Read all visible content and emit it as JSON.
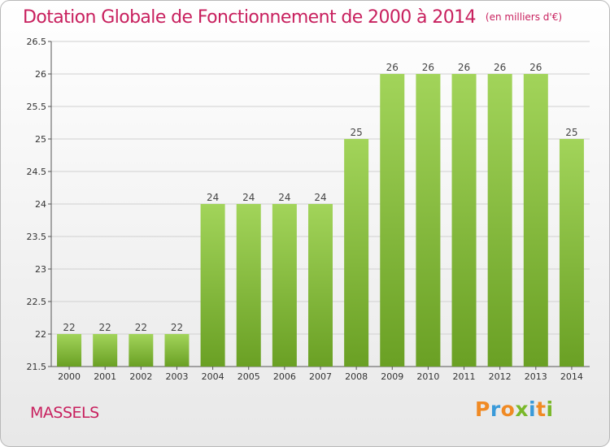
{
  "header": {
    "title": "Dotation Globale de Fonctionnement de 2000 à 2014",
    "unit": "(en milliers d'€)"
  },
  "footer": {
    "town": "MASSELS",
    "brand_letters": [
      "P",
      "r",
      "o",
      "x",
      "i",
      "t",
      "i"
    ],
    "brand_colors": [
      "#f08a24",
      "#3a9ad9",
      "#f08a24",
      "#7ab82a",
      "#3a9ad9",
      "#f08a24",
      "#7ab82a"
    ]
  },
  "colors": {
    "bar": "#8cc63f",
    "bar_light": "#a2d45a",
    "bar_dark": "#6aa024",
    "axis": "#555555",
    "grid": "#d0d0d0",
    "title": "#c8205e"
  },
  "chart_data": {
    "type": "bar",
    "title": "Dotation Globale de Fonctionnement de 2000 à 2014",
    "categories": [
      "2000",
      "2001",
      "2002",
      "2003",
      "2004",
      "2005",
      "2006",
      "2007",
      "2008",
      "2009",
      "2010",
      "2011",
      "2012",
      "2013",
      "2014"
    ],
    "values": [
      22,
      22,
      22,
      22,
      24,
      24,
      24,
      24,
      25,
      26,
      26,
      26,
      26,
      26,
      25
    ],
    "ylim": [
      21.5,
      26.5
    ],
    "yticks": [
      21.5,
      22,
      22.5,
      23,
      23.5,
      24,
      24.5,
      25,
      25.5,
      26,
      26.5
    ],
    "grid": true,
    "xlabel": "",
    "ylabel": ""
  }
}
